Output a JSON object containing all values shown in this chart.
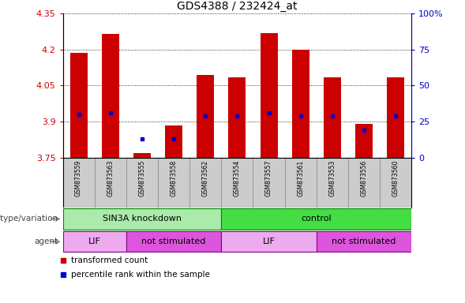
{
  "title": "GDS4388 / 232424_at",
  "samples": [
    "GSM873559",
    "GSM873563",
    "GSM873555",
    "GSM873558",
    "GSM873562",
    "GSM873554",
    "GSM873557",
    "GSM873561",
    "GSM873553",
    "GSM873556",
    "GSM873560"
  ],
  "transformed_counts": [
    4.185,
    4.265,
    3.77,
    3.885,
    4.095,
    4.085,
    4.27,
    4.2,
    4.085,
    3.89,
    4.085
  ],
  "percentile_ranks": [
    30,
    31,
    13,
    13,
    29,
    29,
    31,
    29,
    29,
    19,
    29
  ],
  "ylim_left": [
    3.75,
    4.35
  ],
  "ylim_right": [
    0,
    100
  ],
  "yticks_left": [
    3.75,
    3.9,
    4.05,
    4.2,
    4.35
  ],
  "yticks_right": [
    0,
    25,
    50,
    75,
    100
  ],
  "ytick_labels_left": [
    "3.75",
    "3.9",
    "4.05",
    "4.2",
    "4.35"
  ],
  "ytick_labels_right": [
    "0",
    "25",
    "50",
    "75",
    "100%"
  ],
  "bar_bottom": 3.75,
  "bar_color": "#cc0000",
  "dot_color": "#0000cc",
  "genotype_groups": [
    {
      "label": "SIN3A knockdown",
      "start": 0,
      "end": 5,
      "color": "#aaeaaa"
    },
    {
      "label": "control",
      "start": 5,
      "end": 11,
      "color": "#44dd44"
    }
  ],
  "agent_groups": [
    {
      "label": "LIF",
      "start": 0,
      "end": 2,
      "color": "#eeaaee"
    },
    {
      "label": "not stimulated",
      "start": 2,
      "end": 5,
      "color": "#dd55dd"
    },
    {
      "label": "LIF",
      "start": 5,
      "end": 8,
      "color": "#eeaaee"
    },
    {
      "label": "not stimulated",
      "start": 8,
      "end": 11,
      "color": "#dd55dd"
    }
  ],
  "legend_bar_label": "transformed count",
  "legend_dot_label": "percentile rank within the sample",
  "genotype_label": "genotype/variation",
  "agent_label": "agent",
  "left_axis_color": "#cc0000",
  "right_axis_color": "#0000cc",
  "sample_box_color": "#cccccc",
  "sample_box_edge": "#888888"
}
